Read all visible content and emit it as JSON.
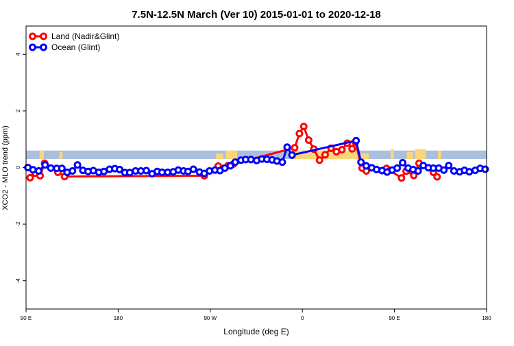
{
  "chart_data": {
    "type": "line",
    "title": "7.5N-12.5N March (Ver 10)   2015-01-01 to 2020-12-18",
    "xlabel": "Longitude (deg E)",
    "ylabel": "XCO2 - MLO trend (ppm)",
    "xlim": [
      90,
      450
    ],
    "ylim": [
      -5,
      5
    ],
    "x_ticks": [
      {
        "value": 90,
        "label": "90 E"
      },
      {
        "value": 162,
        "label": "180"
      },
      {
        "value": 234,
        "label": "90 W"
      },
      {
        "value": 306,
        "label": "0"
      },
      {
        "value": 378,
        "label": "90 E"
      },
      {
        "value": 450,
        "label": "180"
      }
    ],
    "y_ticks": [
      -4,
      -2,
      0,
      2,
      4
    ],
    "legend_position": "top-left",
    "grid": false,
    "reference_band": {
      "y_low": 0.3,
      "y_high": 0.6,
      "color": "#a9bfdf"
    },
    "land_color": "#f9d67a",
    "series": [
      {
        "name": "Land (Nadir&Glint)",
        "color": "#ff0000",
        "points": [
          [
            93.2,
            -0.36
          ],
          [
            97.1,
            -0.2
          ],
          [
            101.0,
            -0.29
          ],
          [
            104.5,
            0.15
          ],
          [
            114.9,
            -0.17
          ],
          [
            120.1,
            -0.32
          ],
          [
            229.4,
            -0.29
          ],
          [
            240.2,
            0.05
          ],
          [
            248.1,
            0.07
          ],
          [
            252.0,
            0.12
          ],
          [
            300.0,
            0.7
          ],
          [
            303.7,
            1.2
          ],
          [
            307.1,
            1.45
          ],
          [
            310.9,
            0.97
          ],
          [
            315.0,
            0.65
          ],
          [
            319.4,
            0.26
          ],
          [
            323.8,
            0.45
          ],
          [
            328.4,
            0.68
          ],
          [
            332.6,
            0.56
          ],
          [
            336.9,
            0.63
          ],
          [
            341.1,
            0.86
          ],
          [
            344.9,
            0.66
          ],
          [
            347.4,
            0.9
          ],
          [
            352.7,
            -0.02
          ],
          [
            356.0,
            -0.12
          ],
          [
            371.8,
            -0.03
          ],
          [
            374.5,
            -0.1
          ],
          [
            383.5,
            -0.37
          ],
          [
            387.1,
            -0.13
          ],
          [
            393.1,
            -0.28
          ],
          [
            397.2,
            0.15
          ],
          [
            408.4,
            -0.17
          ],
          [
            411.3,
            -0.33
          ]
        ]
      },
      {
        "name": "Ocean (Glint)",
        "color": "#0000ff",
        "points": [
          [
            91.4,
            0.0
          ],
          [
            95.4,
            -0.08
          ],
          [
            99.9,
            -0.12
          ],
          [
            104.9,
            0.09
          ],
          [
            109.4,
            -0.02
          ],
          [
            114.0,
            -0.03
          ],
          [
            118.0,
            -0.03
          ],
          [
            122.1,
            -0.17
          ],
          [
            126.3,
            -0.12
          ],
          [
            130.2,
            0.09
          ],
          [
            134.4,
            -0.1
          ],
          [
            138.5,
            -0.14
          ],
          [
            142.6,
            -0.11
          ],
          [
            146.9,
            -0.17
          ],
          [
            150.9,
            -0.14
          ],
          [
            155.3,
            -0.06
          ],
          [
            159.4,
            -0.04
          ],
          [
            163.1,
            -0.07
          ],
          [
            167.3,
            -0.18
          ],
          [
            171.1,
            -0.18
          ],
          [
            175.6,
            -0.12
          ],
          [
            179.8,
            -0.12
          ],
          [
            184.0,
            -0.11
          ],
          [
            188.5,
            -0.22
          ],
          [
            192.6,
            -0.14
          ],
          [
            196.3,
            -0.17
          ],
          [
            200.7,
            -0.17
          ],
          [
            205.1,
            -0.15
          ],
          [
            209.0,
            -0.09
          ],
          [
            213.1,
            -0.12
          ],
          [
            216.6,
            -0.14
          ],
          [
            220.8,
            -0.06
          ],
          [
            225.6,
            -0.16
          ],
          [
            229.3,
            -0.21
          ],
          [
            233.4,
            -0.12
          ],
          [
            237.7,
            -0.09
          ],
          [
            241.6,
            -0.11
          ],
          [
            245.4,
            -0.02
          ],
          [
            249.7,
            0.06
          ],
          [
            253.5,
            0.19
          ],
          [
            258.0,
            0.26
          ],
          [
            261.7,
            0.28
          ],
          [
            265.8,
            0.28
          ],
          [
            270.3,
            0.25
          ],
          [
            274.3,
            0.3
          ],
          [
            278.3,
            0.29
          ],
          [
            282.3,
            0.27
          ],
          [
            286.1,
            0.23
          ],
          [
            290.3,
            0.19
          ],
          [
            294.1,
            0.72
          ],
          [
            297.9,
            0.44
          ],
          [
            348.0,
            0.95
          ],
          [
            351.8,
            0.19
          ],
          [
            355.9,
            0.06
          ],
          [
            360.2,
            -0.01
          ],
          [
            364.0,
            -0.07
          ],
          [
            368.3,
            -0.11
          ],
          [
            372.2,
            -0.16
          ],
          [
            376.2,
            -0.09
          ],
          [
            380.1,
            -0.02
          ],
          [
            384.4,
            0.17
          ],
          [
            388.7,
            -0.02
          ],
          [
            392.5,
            -0.07
          ],
          [
            396.5,
            -0.12
          ],
          [
            400.5,
            0.07
          ],
          [
            404.5,
            -0.01
          ],
          [
            408.4,
            -0.02
          ],
          [
            412.6,
            -0.02
          ],
          [
            416.6,
            -0.09
          ],
          [
            420.4,
            0.07
          ],
          [
            424.5,
            -0.12
          ],
          [
            428.9,
            -0.15
          ],
          [
            432.7,
            -0.1
          ],
          [
            436.5,
            -0.15
          ],
          [
            441.1,
            -0.1
          ],
          [
            445.0,
            -0.03
          ],
          [
            448.9,
            -0.06
          ]
        ]
      }
    ],
    "land_patches": [
      {
        "x_start": 100.5,
        "x_end": 104.0,
        "height": 0.3
      },
      {
        "x_start": 116.0,
        "x_end": 118.5,
        "height": 0.25
      },
      {
        "x_start": 238.5,
        "x_end": 244.0,
        "height": 0.2
      },
      {
        "x_start": 246.0,
        "x_end": 255.0,
        "height": 0.3
      },
      {
        "x_start": 297.0,
        "x_end": 300.5,
        "height": 0.15
      },
      {
        "x_start": 301.0,
        "x_end": 351.0,
        "height": 0.3
      },
      {
        "x_start": 351.0,
        "x_end": 358.0,
        "height": 0.2
      },
      {
        "x_start": 375.0,
        "x_end": 377.5,
        "height": 0.35
      },
      {
        "x_start": 387.5,
        "x_end": 392.5,
        "height": 0.25
      },
      {
        "x_start": 394.0,
        "x_end": 402.5,
        "height": 0.35
      },
      {
        "x_start": 412.0,
        "x_end": 414.5,
        "height": 0.3
      }
    ]
  }
}
